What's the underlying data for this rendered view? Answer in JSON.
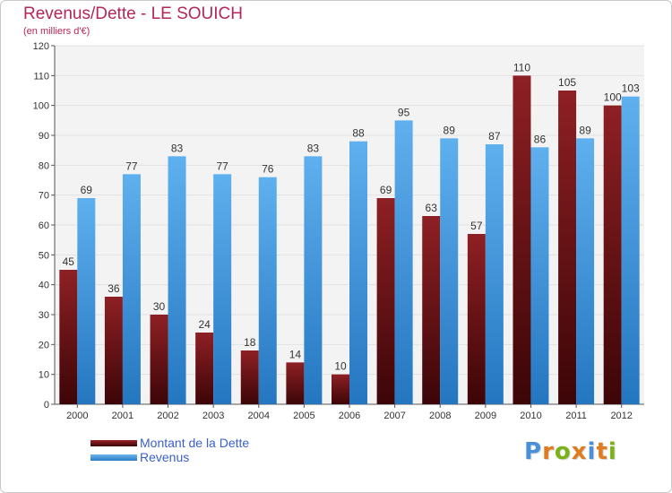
{
  "chart_data": {
    "type": "bar",
    "title": "Revenus/Dette - LE SOUICH",
    "subtitle": "(en milliers d'€)",
    "categories": [
      "2000",
      "2001",
      "2002",
      "2003",
      "2004",
      "2005",
      "2006",
      "2007",
      "2008",
      "2009",
      "2010",
      "2011",
      "2012"
    ],
    "series": [
      {
        "name": "Montant de la Dette",
        "values": [
          45,
          36,
          30,
          24,
          18,
          14,
          10,
          69,
          63,
          57,
          110,
          105,
          100
        ]
      },
      {
        "name": "Revenus",
        "values": [
          69,
          77,
          83,
          77,
          76,
          83,
          88,
          95,
          89,
          87,
          86,
          89,
          103
        ]
      }
    ],
    "ylim": [
      0,
      120
    ],
    "yticks": [
      0,
      10,
      20,
      30,
      40,
      50,
      60,
      70,
      80,
      90,
      100,
      110,
      120
    ],
    "grid": true,
    "legend_position": "bottom-left"
  },
  "colors": {
    "dette_bar": "#7a1518",
    "revenus_bar": "#3e97e0",
    "title": "#b5265a",
    "legend_text": "#3a5fcd",
    "grid": "#e2e2e2",
    "chart_bg": "#f3f3f3"
  },
  "logo": {
    "letters": [
      "P",
      "r",
      "o",
      "x",
      "i",
      "t",
      "i"
    ],
    "colors": [
      "#4a90d9",
      "#e07b20",
      "#7ab317",
      "#e07b20",
      "#4a90d9",
      "#e07b20",
      "#7ab317"
    ]
  }
}
